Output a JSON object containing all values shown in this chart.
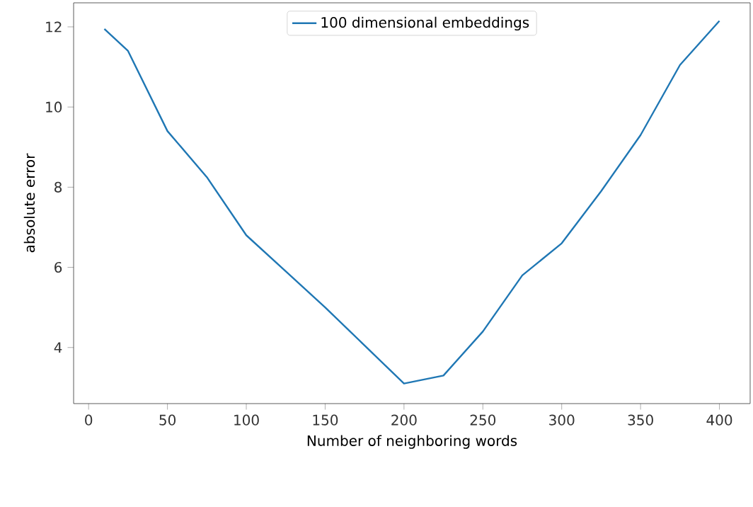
{
  "chart_data": {
    "type": "line",
    "xlabel": "Number of neighboring words",
    "ylabel": "absolute error",
    "x": [
      10,
      25,
      50,
      75,
      100,
      125,
      150,
      175,
      200,
      225,
      250,
      275,
      300,
      325,
      350,
      375,
      400
    ],
    "series": [
      {
        "name": "100 dimensional embeddings",
        "color": "#1f77b4",
        "values": [
          11.95,
          11.4,
          9.4,
          8.25,
          6.8,
          5.9,
          5.0,
          4.05,
          3.1,
          3.3,
          4.4,
          5.8,
          6.6,
          7.9,
          9.3,
          11.05,
          12.15
        ]
      }
    ],
    "xlim": [
      -9.5,
      419.5
    ],
    "ylim": [
      2.6,
      12.6
    ],
    "xticks": [
      0,
      50,
      100,
      150,
      200,
      250,
      300,
      350,
      400
    ],
    "yticks": [
      4,
      6,
      8,
      10,
      12
    ],
    "legend": "top center",
    "grid": false,
    "marker": "none",
    "line_style": "solid"
  }
}
